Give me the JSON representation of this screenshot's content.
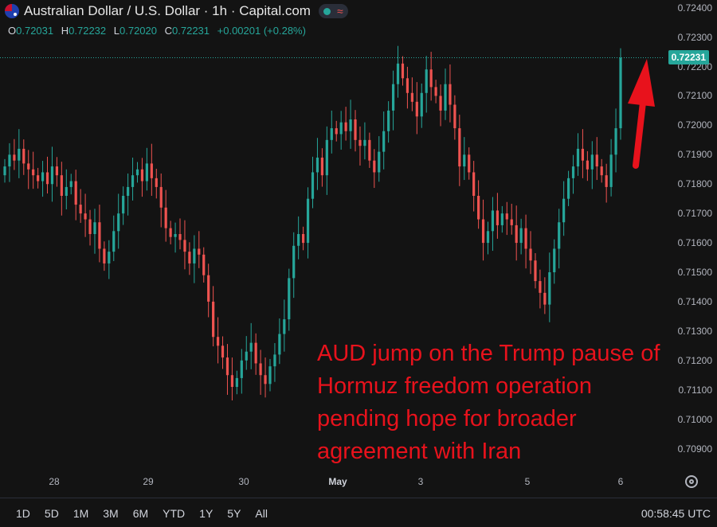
{
  "header": {
    "title": "Australian Dollar / U.S. Dollar · 1h · Capital.com",
    "flag_icon": "au-us-flag-icon",
    "status_dot_color": "#26a69a"
  },
  "ohlc": {
    "o_label": "O",
    "o": "0.72031",
    "h_label": "H",
    "h": "0.72232",
    "l_label": "L",
    "l": "0.72020",
    "c_label": "C",
    "c": "0.72231",
    "change": "+0.00201 (+0.28%)"
  },
  "price_tag": "0.72231",
  "annotation": "AUD jump on the Trump pause of Hormuz freedom operation pending hope for broader agreement with Iran",
  "timeframes": [
    "1D",
    "5D",
    "1M",
    "3M",
    "6M",
    "YTD",
    "1Y",
    "5Y",
    "All"
  ],
  "clock": "00:58:45 UTC",
  "colors": {
    "up": "#26a69a",
    "down": "#ef5350",
    "annotation": "#e8121c"
  },
  "chart_data": {
    "type": "candlestick",
    "y_ticks": [
      "0.72400",
      "0.72300",
      "0.72200",
      "0.72100",
      "0.72000",
      "0.71900",
      "0.71800",
      "0.71700",
      "0.71600",
      "0.71500",
      "0.71400",
      "0.71300",
      "0.71200",
      "0.71100",
      "0.71000",
      "0.70900"
    ],
    "x_ticks": [
      {
        "label": "28",
        "bold": false
      },
      {
        "label": "29",
        "bold": false
      },
      {
        "label": "30",
        "bold": false
      },
      {
        "label": "May",
        "bold": true
      },
      {
        "label": "3",
        "bold": false
      },
      {
        "label": "5",
        "bold": false
      },
      {
        "label": "6",
        "bold": false
      }
    ],
    "ylim": [
      0.7085,
      0.7241
    ],
    "close_path": [
      0.7186,
      0.719,
      0.7188,
      0.7192,
      0.7187,
      0.7185,
      0.7183,
      0.7181,
      0.7184,
      0.718,
      0.7186,
      0.7183,
      0.7176,
      0.7179,
      0.7181,
      0.7173,
      0.717,
      0.7168,
      0.7163,
      0.7167,
      0.7158,
      0.7153,
      0.7157,
      0.7164,
      0.717,
      0.7176,
      0.7179,
      0.7183,
      0.7185,
      0.7181,
      0.7187,
      0.7182,
      0.7179,
      0.7172,
      0.7165,
      0.7162,
      0.7163,
      0.7161,
      0.7157,
      0.7153,
      0.7158,
      0.7156,
      0.7149,
      0.714,
      0.7128,
      0.7125,
      0.7121,
      0.7115,
      0.7111,
      0.7114,
      0.712,
      0.7123,
      0.7126,
      0.7119,
      0.7115,
      0.7112,
      0.7118,
      0.7122,
      0.7129,
      0.7134,
      0.7148,
      0.7159,
      0.7163,
      0.716,
      0.7175,
      0.7184,
      0.7189,
      0.7183,
      0.7195,
      0.7199,
      0.7197,
      0.7201,
      0.7198,
      0.7202,
      0.7195,
      0.7193,
      0.7195,
      0.7188,
      0.7184,
      0.7191,
      0.7198,
      0.7205,
      0.7214,
      0.7221,
      0.7216,
      0.7211,
      0.7208,
      0.7203,
      0.7211,
      0.7219,
      0.7213,
      0.721,
      0.7205,
      0.7214,
      0.7207,
      0.7199,
      0.7186,
      0.719,
      0.7184,
      0.7176,
      0.7168,
      0.716,
      0.7164,
      0.7171,
      0.7166,
      0.717,
      0.7168,
      0.7166,
      0.716,
      0.7165,
      0.7158,
      0.7154,
      0.7147,
      0.7143,
      0.7139,
      0.715,
      0.7158,
      0.7167,
      0.7175,
      0.7182,
      0.7186,
      0.7192,
      0.7188,
      0.7185,
      0.719,
      0.7186,
      0.7183,
      0.7179,
      0.719,
      0.7199,
      0.7223
    ]
  }
}
